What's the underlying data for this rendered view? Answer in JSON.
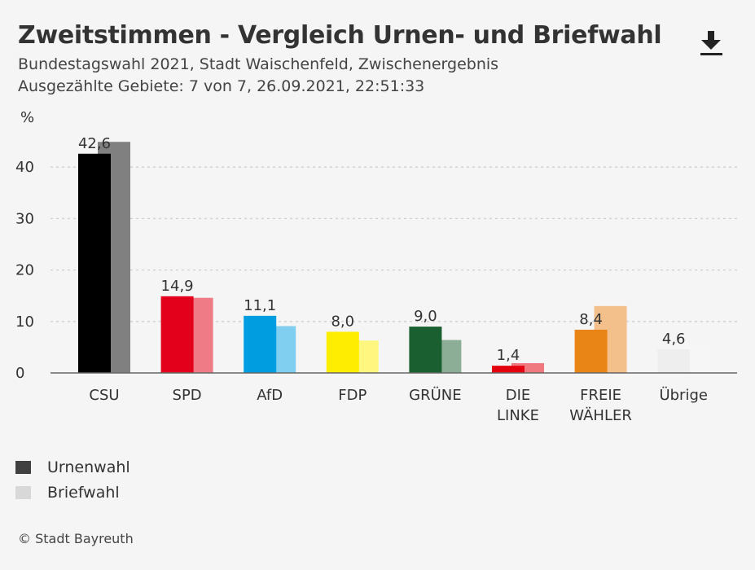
{
  "header": {
    "title": "Zweitstimmen - Vergleich Urnen- und Briefwahl",
    "subtitle_1": "Bundestagswahl 2021, Stadt Waischenfeld, Zwischenergebnis",
    "subtitle_2": "Ausgezählte Gebiete: 7 von 7, 26.09.2021, 22:51:33",
    "download_icon": "download-icon"
  },
  "chart_data": {
    "type": "bar",
    "ylabel": "%",
    "ylim": [
      0,
      48
    ],
    "yticks": [
      0,
      10,
      20,
      30,
      40
    ],
    "grid": true,
    "categories": [
      {
        "label": [
          "CSU"
        ]
      },
      {
        "label": [
          "SPD"
        ]
      },
      {
        "label": [
          "AfD"
        ]
      },
      {
        "label": [
          "FDP"
        ]
      },
      {
        "label": [
          "GRÜNE"
        ]
      },
      {
        "label": [
          "DIE",
          "LINKE"
        ]
      },
      {
        "label": [
          "FREIE",
          "WÄHLER"
        ]
      },
      {
        "label": [
          "Übrige"
        ]
      }
    ],
    "series": [
      {
        "name": "Urnenwahl",
        "values": [
          42.6,
          14.9,
          11.1,
          8.0,
          9.0,
          1.4,
          8.4,
          4.6
        ],
        "labels": [
          "42,6",
          "14,9",
          "11,1",
          "8,0",
          "9,0",
          "1,4",
          "8,4",
          "4,6"
        ],
        "colors": [
          "#000000",
          "#e2001a",
          "#009ee0",
          "#ffed00",
          "#1a5f2f",
          "#e3000f",
          "#e98416",
          "#eeeeee"
        ]
      },
      {
        "name": "Briefwahl",
        "values": [
          44.9,
          14.6,
          9.1,
          6.3,
          6.4,
          1.9,
          13.0,
          5.3
        ],
        "colors": [
          "#808080",
          "#ef7b87",
          "#80cef0",
          "#fff680",
          "#8cae96",
          "#f0797f",
          "#f3c08b",
          "#f6f6f6"
        ]
      }
    ]
  },
  "legend": {
    "items": [
      {
        "label": "Urnenwahl",
        "color": "#404040"
      },
      {
        "label": "Briefwahl",
        "color": "#d8d8d8"
      }
    ]
  },
  "footer": {
    "source": "© Stadt Bayreuth"
  }
}
